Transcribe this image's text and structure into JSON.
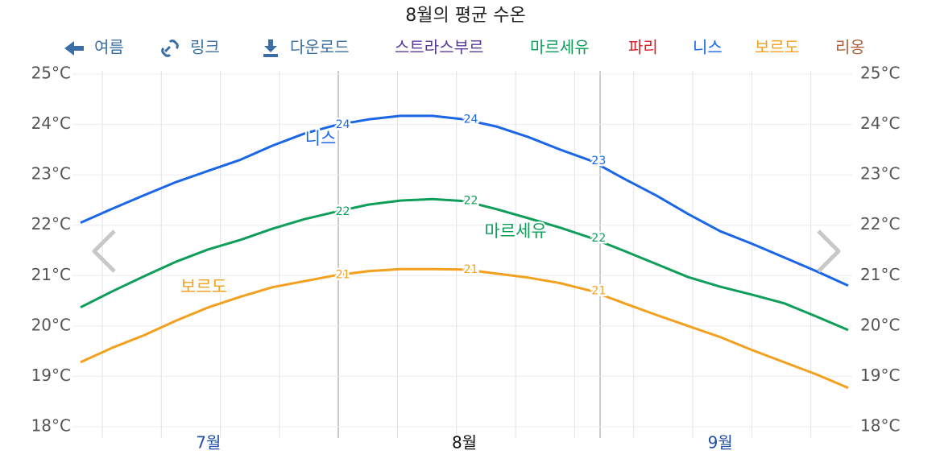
{
  "toolbar": {
    "back": "여름",
    "link": "링크",
    "download": "다운로드"
  },
  "chart_data": {
    "type": "line",
    "title": "8월의 평균 수온",
    "categories": [
      null,
      null,
      null,
      null,
      "7월",
      null,
      null,
      null,
      null,
      null,
      null,
      null,
      "8월",
      null,
      null,
      null,
      null,
      null,
      null,
      null,
      "9월",
      null,
      null,
      null,
      null
    ],
    "ylim": [
      18,
      25
    ],
    "yticks": [
      {
        "value": 18,
        "label": "18°C"
      },
      {
        "value": 19,
        "label": "19°C"
      },
      {
        "value": 20,
        "label": "20°C"
      },
      {
        "value": 21,
        "label": "21°C"
      },
      {
        "value": 22,
        "label": "22°C"
      },
      {
        "value": 23,
        "label": "23°C"
      },
      {
        "value": 24,
        "label": "24°C"
      },
      {
        "value": 25,
        "label": "25°C"
      }
    ],
    "y2lim": [
      18,
      25
    ],
    "y2ticks": [
      {
        "value": 18,
        "label": "18°C"
      },
      {
        "value": 19,
        "label": "19°C"
      },
      {
        "value": 20,
        "label": "20°C"
      },
      {
        "value": 21,
        "label": "21°C"
      },
      {
        "value": 22,
        "label": "22°C"
      },
      {
        "value": 23,
        "label": "23°C"
      },
      {
        "value": 24,
        "label": "24°C"
      },
      {
        "value": 25,
        "label": "25°C"
      }
    ],
    "grid": true,
    "series": [
      {
        "name": "스트라스부르",
        "color": "#5b3a9e",
        "visible": false
      },
      {
        "name": "마르세유",
        "color": "#0e9e5a",
        "visible": true,
        "values": [
          20.37,
          20.69,
          20.99,
          21.28,
          21.52,
          21.71,
          21.93,
          22.12,
          22.27,
          22.41,
          22.49,
          22.52,
          22.48,
          22.32,
          22.14,
          21.95,
          21.74,
          21.49,
          21.23,
          20.97,
          20.78,
          20.62,
          20.45,
          20.19,
          19.92
        ],
        "value_labels": [
          null,
          null,
          null,
          null,
          null,
          null,
          null,
          null,
          "22",
          null,
          null,
          null,
          "22",
          null,
          null,
          null,
          "22",
          null,
          null,
          null,
          null,
          null,
          null,
          null,
          null
        ]
      },
      {
        "name": "파리",
        "color": "#d9202a",
        "visible": false
      },
      {
        "name": "니스",
        "color": "#1a66e6",
        "visible": true,
        "values": [
          22.05,
          22.33,
          22.6,
          22.86,
          23.08,
          23.3,
          23.58,
          23.82,
          23.99,
          24.1,
          24.17,
          24.17,
          24.1,
          23.96,
          23.75,
          23.5,
          23.27,
          22.92,
          22.59,
          22.22,
          21.88,
          21.63,
          21.36,
          21.09,
          20.8
        ],
        "value_labels": [
          null,
          null,
          null,
          null,
          null,
          null,
          null,
          null,
          "24",
          null,
          null,
          null,
          "24",
          null,
          null,
          null,
          "23",
          null,
          null,
          null,
          null,
          null,
          null,
          null,
          null
        ]
      },
      {
        "name": "보르도",
        "color": "#f2a01e",
        "visible": true,
        "values": [
          19.28,
          19.57,
          19.82,
          20.11,
          20.37,
          20.58,
          20.77,
          20.89,
          21.01,
          21.09,
          21.13,
          21.13,
          21.12,
          21.04,
          20.96,
          20.85,
          20.69,
          20.45,
          20.22,
          20.0,
          19.78,
          19.52,
          19.28,
          19.04,
          18.77
        ],
        "value_labels": [
          null,
          null,
          null,
          null,
          null,
          null,
          null,
          null,
          "21",
          null,
          null,
          null,
          "21",
          null,
          null,
          null,
          "21",
          null,
          null,
          null,
          null,
          null,
          null,
          null,
          null
        ]
      },
      {
        "name": "리옹",
        "color": "#b0603a",
        "visible": false
      }
    ]
  }
}
